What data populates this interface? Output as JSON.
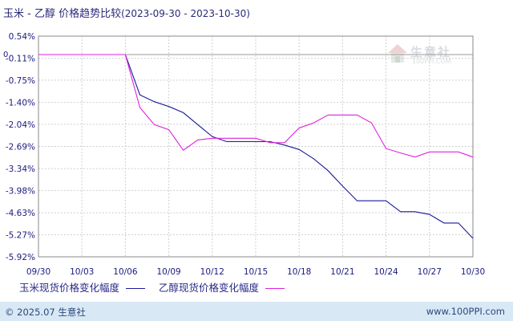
{
  "title": {
    "main": "玉米 - 乙醇 价格趋势比较",
    "range": "(2023-09-30 - 2023-10-30)"
  },
  "watermark": {
    "name": "生意社",
    "url": "100PPI.COM"
  },
  "footer": {
    "copyright": "© 2025.07 生意社",
    "url": "www.100PPI.com"
  },
  "chart_data": {
    "type": "line",
    "title": "玉米 - 乙醇 价格趋势比较",
    "x": [
      "09/30",
      "10/01",
      "10/02",
      "10/03",
      "10/04",
      "10/05",
      "10/06",
      "10/07",
      "10/08",
      "10/09",
      "10/10",
      "10/11",
      "10/12",
      "10/13",
      "10/14",
      "10/15",
      "10/16",
      "10/17",
      "10/18",
      "10/19",
      "10/20",
      "10/21",
      "10/22",
      "10/23",
      "10/24",
      "10/25",
      "10/26",
      "10/27",
      "10/28",
      "10/29",
      "10/30"
    ],
    "x_tick_labels": [
      "09/30",
      "10/03",
      "10/06",
      "10/09",
      "10/12",
      "10/15",
      "10/18",
      "10/21",
      "10/24",
      "10/27",
      "10/30"
    ],
    "y_tick_labels": [
      "0.54%",
      "-0.11%",
      "-0.75%",
      "-1.40%",
      "-2.04%",
      "-2.69%",
      "-3.34%",
      "-3.98%",
      "-4.63%",
      "-5.27%",
      "-5.92%"
    ],
    "y_ticks": [
      0.54,
      -0.11,
      -0.75,
      -1.4,
      -2.04,
      -2.69,
      -3.34,
      -3.98,
      -4.63,
      -5.27,
      -5.92
    ],
    "ylim": [
      -5.92,
      0.54
    ],
    "zero_label": "0",
    "grid": true,
    "legend_position": "bottom",
    "series": [
      {
        "name": "玉米现货价格变化幅度",
        "color": "#1a1a9a",
        "values": [
          0,
          0,
          0,
          0,
          0,
          0,
          0,
          -1.18,
          -1.38,
          -1.52,
          -1.7,
          -2.05,
          -2.4,
          -2.55,
          -2.55,
          -2.55,
          -2.55,
          -2.65,
          -2.78,
          -3.05,
          -3.4,
          -3.85,
          -4.28,
          -4.28,
          -4.28,
          -4.6,
          -4.6,
          -4.68,
          -4.93,
          -4.93,
          -5.38
        ]
      },
      {
        "name": "乙醇现货价格变化幅度",
        "color": "#dd22dd",
        "values": [
          0,
          0,
          0,
          0,
          0,
          0,
          0,
          -1.55,
          -2.05,
          -2.2,
          -2.8,
          -2.5,
          -2.45,
          -2.45,
          -2.45,
          -2.45,
          -2.58,
          -2.58,
          -2.15,
          -2.0,
          -1.77,
          -1.77,
          -1.77,
          -2.0,
          -2.75,
          -2.88,
          -3.0,
          -2.85,
          -2.85,
          -2.85,
          -3.0
        ]
      }
    ]
  }
}
